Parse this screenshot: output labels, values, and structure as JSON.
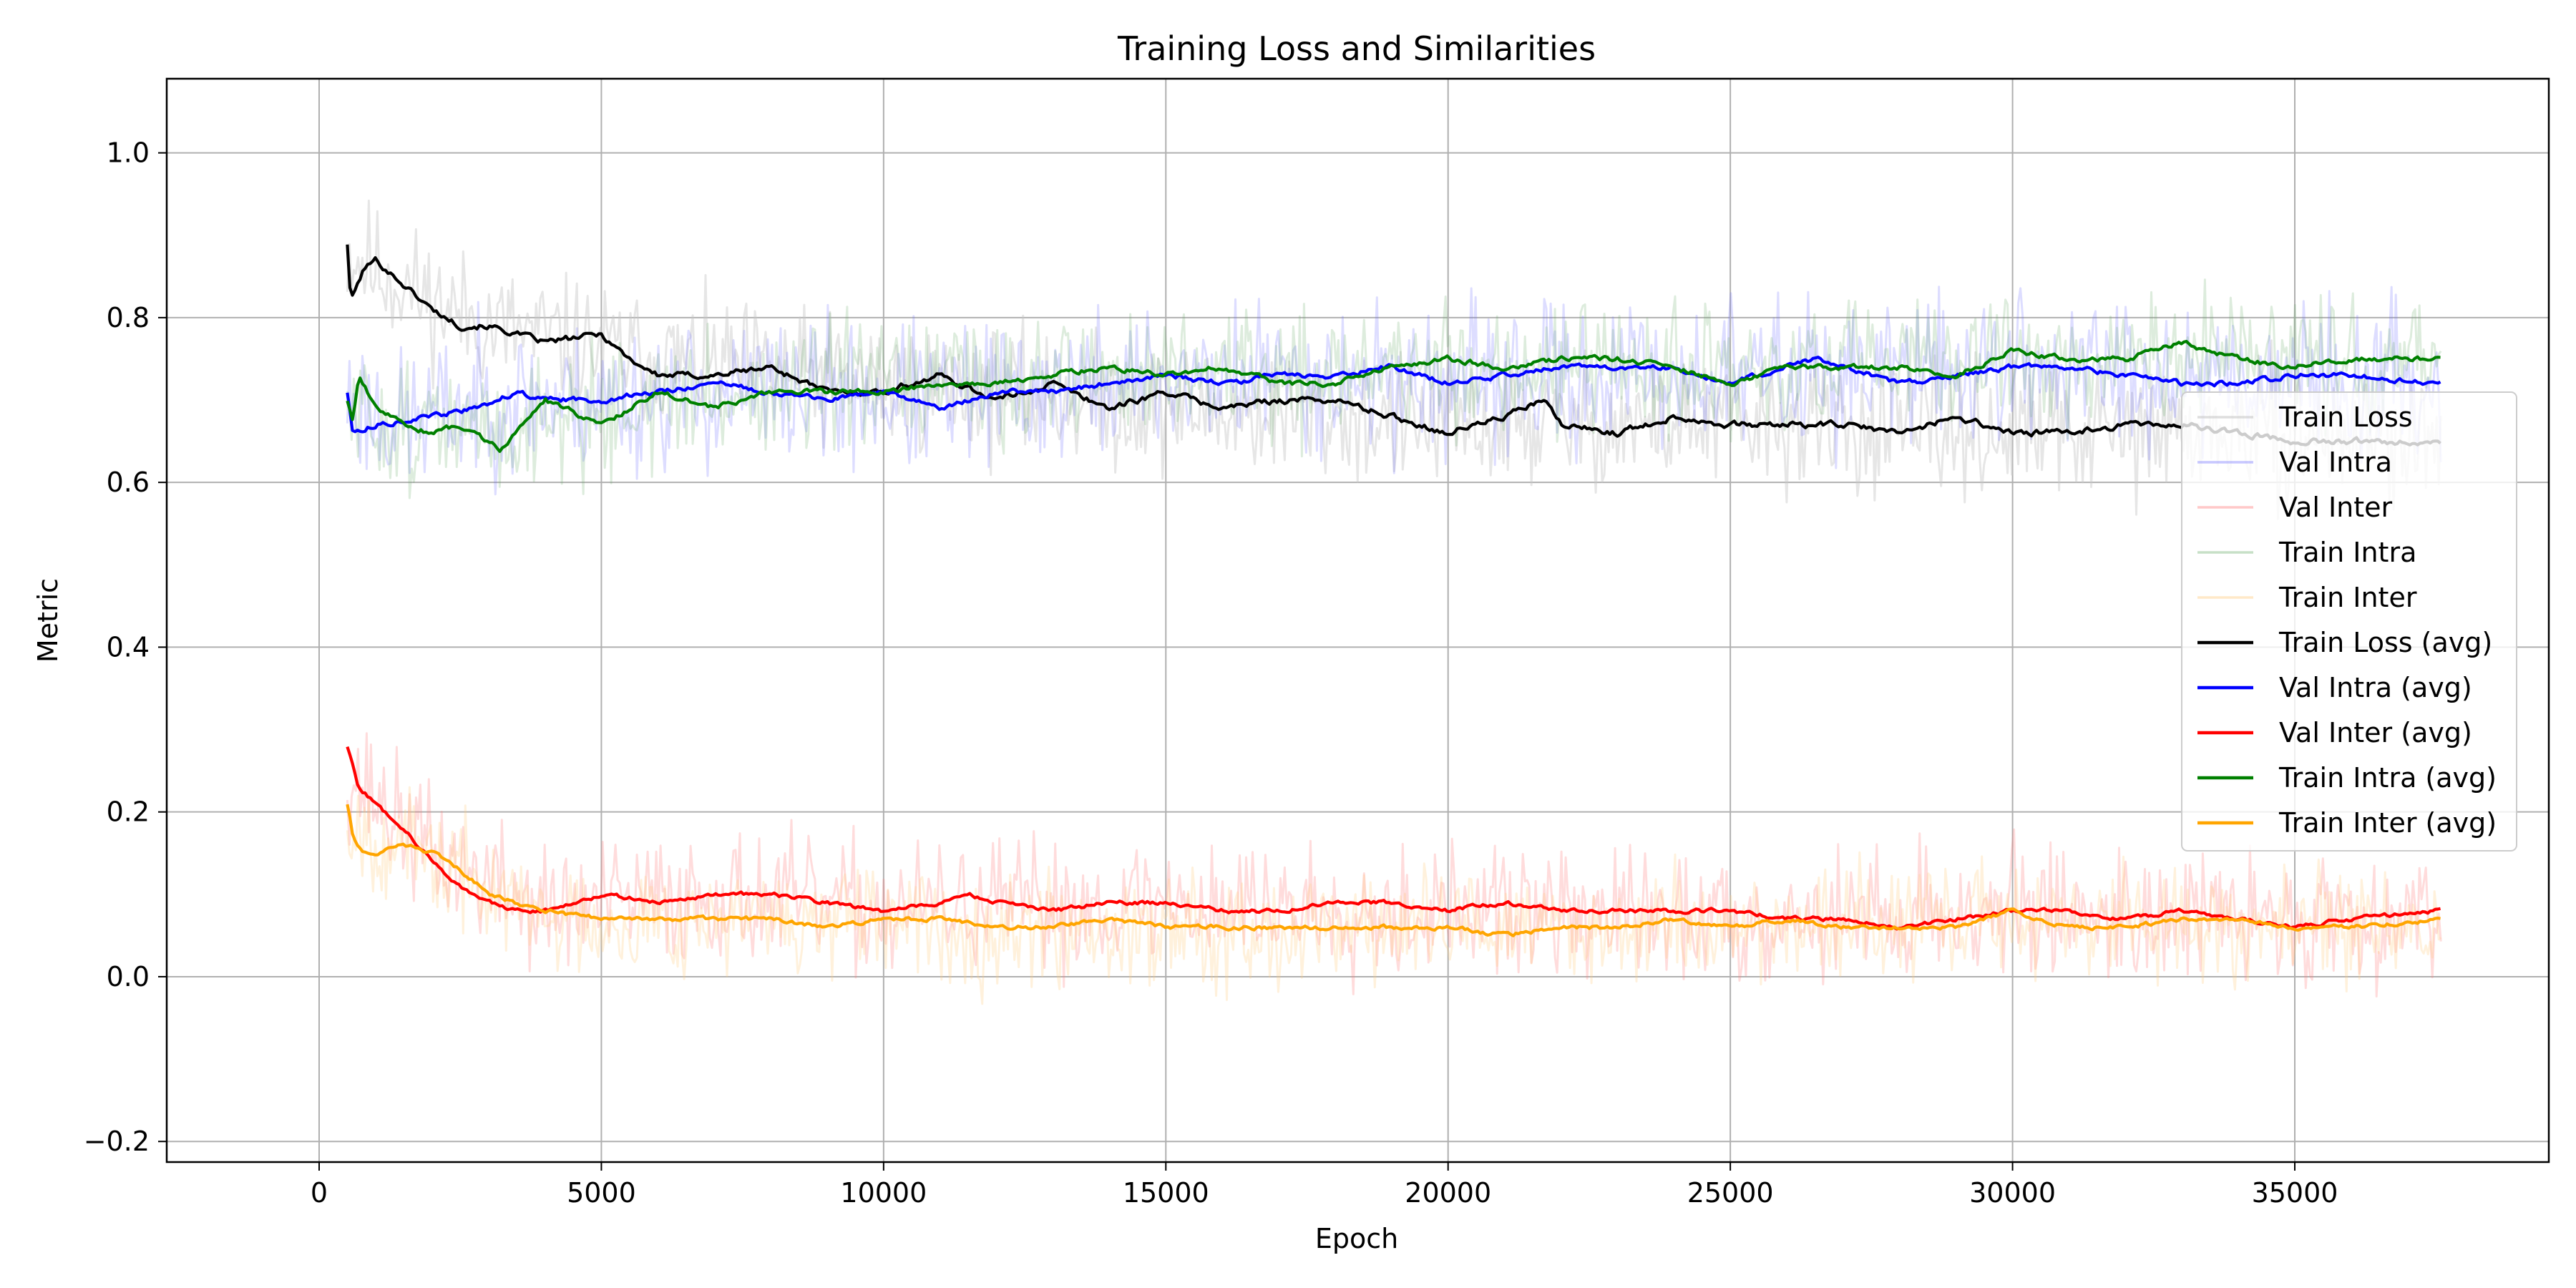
{
  "chart_data": {
    "type": "line",
    "title": "Training Loss and Similarities",
    "xlabel": "Epoch",
    "ylabel": "Metric",
    "xlim": [
      -2700,
      39500
    ],
    "ylim": [
      -0.225,
      1.09
    ],
    "xticks": [
      0,
      5000,
      10000,
      15000,
      20000,
      25000,
      30000,
      35000
    ],
    "yticks": [
      -0.2,
      0.0,
      0.2,
      0.4,
      0.6,
      0.8,
      1.0
    ],
    "xtick_labels": [
      "0",
      "5000",
      "10000",
      "15000",
      "20000",
      "25000",
      "30000",
      "35000"
    ],
    "ytick_labels": [
      "−0.2",
      "0.0",
      "0.2",
      "0.4",
      "0.6",
      "0.8",
      "1.0"
    ],
    "grid": true,
    "legend_position": "center-right",
    "series": [
      {
        "name": "Train Loss",
        "color": "#c8c8c8",
        "alpha": 0.45,
        "raw": true,
        "noise": 0.07,
        "seed": 11,
        "x": [
          500,
          1000,
          2000,
          3000,
          5000,
          7000,
          10000,
          15000,
          20000,
          25000,
          30000,
          35000,
          37600
        ],
        "y": [
          0.88,
          0.86,
          0.82,
          0.79,
          0.76,
          0.74,
          0.72,
          0.69,
          0.67,
          0.67,
          0.66,
          0.66,
          0.65
        ]
      },
      {
        "name": "Val Intra",
        "color": "#6666ff",
        "alpha": 0.22,
        "raw": true,
        "noise": 0.08,
        "seed": 23,
        "x": [
          500,
          1500,
          3000,
          5000,
          8000,
          11000,
          14000,
          17000,
          20000,
          25000,
          30000,
          35000,
          37600
        ],
        "y": [
          0.7,
          0.67,
          0.7,
          0.7,
          0.71,
          0.7,
          0.72,
          0.73,
          0.72,
          0.73,
          0.74,
          0.73,
          0.72
        ]
      },
      {
        "name": "Val Inter",
        "color": "#ff8080",
        "alpha": 0.28,
        "raw": true,
        "noise": 0.07,
        "seed": 37,
        "x": [
          500,
          2000,
          4000,
          7000,
          10000,
          15000,
          20000,
          25000,
          30000,
          35000,
          37600
        ],
        "y": [
          0.25,
          0.15,
          0.08,
          0.1,
          0.08,
          0.09,
          0.08,
          0.07,
          0.08,
          0.07,
          0.08
        ]
      },
      {
        "name": "Train Intra",
        "color": "#66aa66",
        "alpha": 0.22,
        "raw": true,
        "noise": 0.07,
        "seed": 51,
        "x": [
          500,
          1500,
          3000,
          5000,
          8000,
          11000,
          14000,
          17000,
          20000,
          25000,
          30000,
          35000,
          37600
        ],
        "y": [
          0.68,
          0.67,
          0.66,
          0.69,
          0.71,
          0.72,
          0.73,
          0.73,
          0.74,
          0.73,
          0.75,
          0.75,
          0.75
        ]
      },
      {
        "name": "Train Inter",
        "color": "#ffcc80",
        "alpha": 0.28,
        "raw": true,
        "noise": 0.06,
        "seed": 67,
        "x": [
          500,
          2000,
          4000,
          7000,
          10000,
          15000,
          20000,
          25000,
          30000,
          35000,
          37600
        ],
        "y": [
          0.19,
          0.14,
          0.07,
          0.07,
          0.06,
          0.06,
          0.06,
          0.06,
          0.07,
          0.06,
          0.06
        ]
      },
      {
        "name": "Train Loss (avg)",
        "color": "#000000",
        "alpha": 1,
        "raw": false,
        "noise": 0.006,
        "seed": 101,
        "x": [
          500,
          560,
          800,
          1000,
          1500,
          2000,
          2500,
          3000,
          4000,
          5000,
          5500,
          6000,
          7000,
          8000,
          9000,
          10000,
          11000,
          12000,
          13000,
          14000,
          15000,
          16000,
          17000,
          18000,
          19000,
          20000,
          21000,
          21700,
          22000,
          23000,
          24000,
          25000,
          26000,
          27000,
          28000,
          29000,
          30000,
          31000,
          32000,
          33000,
          34000,
          35000,
          36000,
          37600
        ],
        "y": [
          0.89,
          0.82,
          0.86,
          0.87,
          0.84,
          0.81,
          0.79,
          0.79,
          0.77,
          0.78,
          0.75,
          0.73,
          0.73,
          0.74,
          0.71,
          0.71,
          0.73,
          0.7,
          0.72,
          0.69,
          0.71,
          0.69,
          0.7,
          0.7,
          0.68,
          0.66,
          0.68,
          0.7,
          0.67,
          0.66,
          0.68,
          0.67,
          0.67,
          0.67,
          0.66,
          0.68,
          0.66,
          0.66,
          0.67,
          0.67,
          0.66,
          0.65,
          0.65,
          0.65
        ]
      },
      {
        "name": "Val Intra (avg)",
        "color": "#0000ff",
        "alpha": 1,
        "raw": false,
        "noise": 0.005,
        "seed": 113,
        "x": [
          500,
          600,
          1000,
          2000,
          2800,
          3500,
          4000,
          5000,
          6000,
          7000,
          8000,
          9000,
          10000,
          11000,
          12000,
          13000,
          14000,
          15000,
          16000,
          17000,
          18000,
          19000,
          20000,
          21000,
          22000,
          23000,
          24000,
          25000,
          26000,
          26500,
          27000,
          28000,
          29000,
          30000,
          31000,
          32000,
          33000,
          34000,
          35000,
          36000,
          37600
        ],
        "y": [
          0.71,
          0.66,
          0.67,
          0.68,
          0.69,
          0.71,
          0.7,
          0.7,
          0.71,
          0.72,
          0.71,
          0.7,
          0.71,
          0.69,
          0.71,
          0.71,
          0.72,
          0.73,
          0.72,
          0.73,
          0.73,
          0.74,
          0.72,
          0.73,
          0.74,
          0.74,
          0.74,
          0.72,
          0.74,
          0.75,
          0.74,
          0.72,
          0.73,
          0.74,
          0.74,
          0.73,
          0.72,
          0.72,
          0.73,
          0.73,
          0.72
        ]
      },
      {
        "name": "Val Inter (avg)",
        "color": "#ff0000",
        "alpha": 1,
        "raw": false,
        "noise": 0.004,
        "seed": 127,
        "x": [
          500,
          700,
          1000,
          1500,
          2000,
          2500,
          3000,
          3500,
          4000,
          5000,
          6000,
          7000,
          8000,
          9000,
          10000,
          11000,
          11500,
          12000,
          13000,
          14000,
          15000,
          16000,
          17000,
          18000,
          19000,
          20000,
          21000,
          22000,
          23000,
          24000,
          25000,
          26000,
          27000,
          28000,
          29000,
          30000,
          31000,
          32000,
          33000,
          34000,
          35000,
          36000,
          37600
        ],
        "y": [
          0.28,
          0.23,
          0.21,
          0.18,
          0.14,
          0.11,
          0.09,
          0.08,
          0.08,
          0.1,
          0.09,
          0.1,
          0.1,
          0.09,
          0.08,
          0.09,
          0.1,
          0.09,
          0.08,
          0.09,
          0.09,
          0.08,
          0.08,
          0.09,
          0.09,
          0.08,
          0.09,
          0.08,
          0.08,
          0.08,
          0.08,
          0.07,
          0.07,
          0.06,
          0.07,
          0.08,
          0.08,
          0.07,
          0.08,
          0.07,
          0.06,
          0.07,
          0.08
        ]
      },
      {
        "name": "Train Intra (avg)",
        "color": "#008000",
        "alpha": 1,
        "raw": false,
        "noise": 0.005,
        "seed": 139,
        "x": [
          500,
          600,
          700,
          1000,
          1500,
          2000,
          2500,
          3200,
          4000,
          5000,
          6000,
          7000,
          8000,
          9000,
          10000,
          11000,
          12000,
          13000,
          14000,
          15000,
          16000,
          17000,
          18000,
          19000,
          20000,
          21000,
          22000,
          23000,
          24000,
          25000,
          26000,
          27000,
          28000,
          29000,
          30000,
          31000,
          32000,
          33000,
          34000,
          35000,
          36000,
          37600
        ],
        "y": [
          0.7,
          0.67,
          0.73,
          0.69,
          0.67,
          0.66,
          0.67,
          0.64,
          0.7,
          0.67,
          0.71,
          0.69,
          0.71,
          0.71,
          0.71,
          0.72,
          0.72,
          0.73,
          0.74,
          0.73,
          0.74,
          0.72,
          0.72,
          0.74,
          0.75,
          0.74,
          0.75,
          0.75,
          0.74,
          0.72,
          0.74,
          0.74,
          0.74,
          0.73,
          0.76,
          0.75,
          0.75,
          0.77,
          0.75,
          0.74,
          0.75,
          0.75
        ]
      },
      {
        "name": "Train Inter (avg)",
        "color": "#ffa500",
        "alpha": 1,
        "raw": false,
        "noise": 0.004,
        "seed": 151,
        "x": [
          500,
          600,
          800,
          1000,
          1500,
          2000,
          2500,
          3000,
          4000,
          5000,
          6000,
          7000,
          8000,
          9000,
          10000,
          11000,
          12000,
          13000,
          14000,
          15000,
          16000,
          17000,
          18000,
          19000,
          20000,
          21000,
          22000,
          23000,
          24000,
          25000,
          26000,
          27000,
          28000,
          29000,
          30000,
          31000,
          32000,
          33000,
          34000,
          35000,
          36000,
          37600
        ],
        "y": [
          0.21,
          0.17,
          0.15,
          0.15,
          0.16,
          0.15,
          0.13,
          0.1,
          0.08,
          0.07,
          0.07,
          0.07,
          0.07,
          0.06,
          0.07,
          0.07,
          0.06,
          0.06,
          0.07,
          0.06,
          0.06,
          0.06,
          0.06,
          0.06,
          0.06,
          0.05,
          0.06,
          0.06,
          0.07,
          0.06,
          0.07,
          0.06,
          0.06,
          0.06,
          0.08,
          0.06,
          0.06,
          0.07,
          0.07,
          0.06,
          0.06,
          0.07
        ]
      }
    ]
  }
}
